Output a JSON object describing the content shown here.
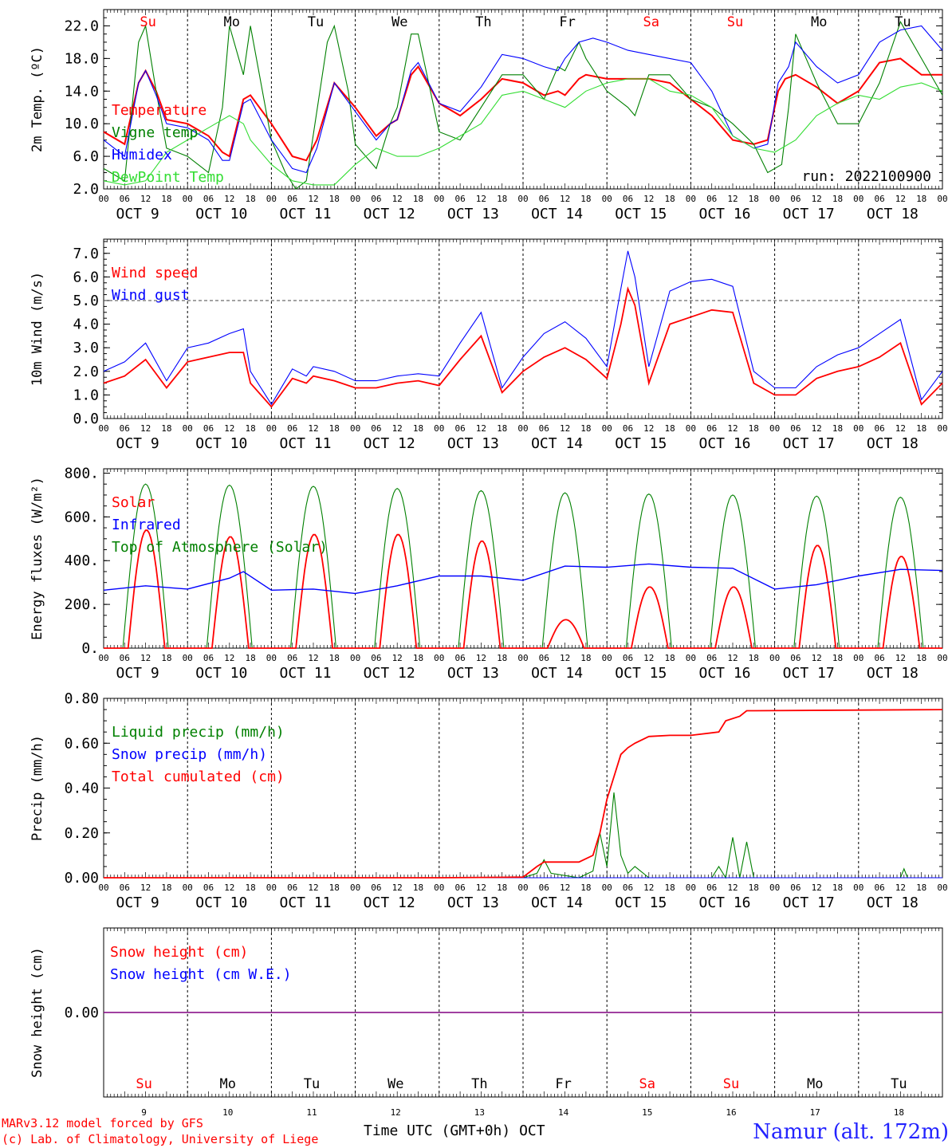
{
  "days": {
    "names": [
      "Su",
      "Mo",
      "Tu",
      "We",
      "Th",
      "Fr",
      "Sa",
      "Su",
      "Mo",
      "Tu"
    ],
    "weekend": [
      true,
      false,
      false,
      false,
      false,
      false,
      true,
      true,
      false,
      false
    ],
    "dates": [
      "OCT  9",
      "OCT 10",
      "OCT 11",
      "OCT 12",
      "OCT 13",
      "OCT 14",
      "OCT 15",
      "OCT 16",
      "OCT 17",
      "OCT 18"
    ],
    "numbers": [
      "9",
      "10",
      "11",
      "12",
      "13",
      "14",
      "15",
      "16",
      "17",
      "18"
    ],
    "hours": [
      "00",
      "06",
      "12",
      "18"
    ],
    "end_hour": "00"
  },
  "colors": {
    "red": "#ff0000",
    "green": "#008000",
    "blue": "#0000ff",
    "lightgreen": "#33dd33",
    "purple": "#800080",
    "gray": "#444444"
  },
  "footer": {
    "model": "MARv3.12 model forced by GFS",
    "credit": "(c) Lab. of Climatology, University of Liege",
    "xlabel": "Time UTC (GMT+0h) OCT",
    "station": "Namur (alt. 172m)"
  },
  "chart_data": [
    {
      "type": "line",
      "ylabel": "2m Temp. (ºC)",
      "ylim": [
        2,
        24
      ],
      "yticks": [
        "2.0",
        "6.0",
        "10.0",
        "14.0",
        "18.0",
        "22.0"
      ],
      "ytick_values": [
        2,
        6,
        10,
        14,
        18,
        22
      ],
      "run_label": "run: 2022100900",
      "x_unit": "hours since OCT 9 00 UTC",
      "series": [
        {
          "name": "Temperature",
          "color": "red",
          "x": [
            0,
            6,
            10,
            12,
            15,
            18,
            24,
            30,
            34,
            36,
            40,
            42,
            48,
            54,
            58,
            61,
            66,
            72,
            78,
            82,
            84,
            88,
            90,
            96,
            102,
            108,
            114,
            120,
            126,
            130,
            132,
            136,
            138,
            144,
            150,
            156,
            162,
            168,
            174,
            180,
            186,
            190,
            193,
            195,
            198,
            204,
            210,
            216,
            222,
            228,
            234,
            240
          ],
          "y": [
            9,
            7.5,
            15,
            16.5,
            14,
            10.5,
            10,
            8.5,
            6.5,
            6,
            13,
            13.5,
            10,
            6,
            5.5,
            8,
            15,
            12,
            8.5,
            10,
            10.5,
            16,
            17,
            12.5,
            11,
            13,
            15.5,
            15,
            13.5,
            14,
            13.5,
            15.5,
            16,
            15.5,
            15.5,
            15.5,
            15,
            13,
            11,
            8,
            7.5,
            8,
            14,
            15.5,
            16,
            14.5,
            12.5,
            14,
            17.5,
            18,
            16,
            16
          ]
        },
        {
          "name": "Vigne temp",
          "color": "green",
          "x": [
            0,
            6,
            10,
            12,
            15,
            18,
            24,
            30,
            34,
            36,
            40,
            42,
            48,
            52,
            55,
            58,
            64,
            66,
            70,
            72,
            78,
            82,
            84,
            88,
            90,
            96,
            102,
            108,
            114,
            120,
            126,
            130,
            132,
            136,
            138,
            144,
            150,
            152,
            156,
            162,
            168,
            174,
            180,
            186,
            190,
            194,
            196,
            198,
            204,
            210,
            216,
            222,
            228,
            234,
            240
          ],
          "y": [
            4.5,
            3,
            20,
            22,
            14,
            7,
            6,
            4,
            12,
            22,
            16,
            22,
            8,
            4,
            2,
            3,
            20,
            22,
            14,
            7.5,
            4.5,
            10,
            12,
            21,
            21,
            9,
            8,
            12,
            16,
            16,
            13,
            17,
            16.5,
            20,
            18,
            14,
            12,
            11,
            16,
            16,
            13,
            12,
            10,
            7.5,
            4,
            5,
            12,
            21,
            15,
            10,
            10,
            15,
            22.5,
            18,
            13.5
          ]
        },
        {
          "name": "Humidex",
          "color": "blue",
          "x": [
            0,
            6,
            10,
            12,
            15,
            18,
            24,
            30,
            34,
            36,
            40,
            42,
            48,
            54,
            58,
            61,
            66,
            72,
            78,
            82,
            84,
            88,
            90,
            96,
            102,
            108,
            114,
            120,
            126,
            130,
            132,
            136,
            140,
            144,
            150,
            156,
            162,
            168,
            174,
            180,
            186,
            190,
            193,
            196,
            198,
            204,
            210,
            216,
            222,
            228,
            234,
            240
          ],
          "y": [
            8,
            6,
            15,
            16.5,
            13.5,
            10,
            9.5,
            8,
            5.5,
            5.5,
            12.5,
            13,
            8,
            4.5,
            4,
            7,
            15,
            11.5,
            8,
            10,
            10.5,
            16.5,
            17.5,
            12.5,
            11.5,
            14.5,
            18.5,
            18,
            17,
            16.5,
            18,
            20,
            20.5,
            20,
            19,
            18.5,
            18,
            17.5,
            14,
            8.5,
            7,
            7.5,
            15,
            17,
            20,
            17,
            15,
            16,
            20,
            21.5,
            22,
            19
          ]
        },
        {
          "name": "DewPoint Temp",
          "color": "lightgreen",
          "x": [
            0,
            6,
            12,
            18,
            24,
            30,
            36,
            40,
            42,
            48,
            54,
            60,
            66,
            72,
            78,
            84,
            90,
            96,
            102,
            108,
            114,
            120,
            126,
            132,
            138,
            144,
            150,
            156,
            162,
            168,
            174,
            180,
            186,
            192,
            198,
            204,
            210,
            216,
            222,
            228,
            234,
            240
          ],
          "y": [
            3,
            2.5,
            3,
            6.5,
            8,
            9.5,
            11,
            10,
            8,
            5,
            3,
            2.5,
            2.5,
            5,
            7,
            6,
            6,
            7,
            8.5,
            10,
            13.5,
            14,
            13,
            12,
            14,
            15,
            15.5,
            15.5,
            14,
            13.5,
            12,
            8.5,
            7,
            6.5,
            8,
            11,
            12.5,
            13.5,
            13,
            14.5,
            15,
            14
          ]
        }
      ]
    },
    {
      "type": "line",
      "ylabel": "10m Wind (m/s)",
      "ylim": [
        0,
        7.6
      ],
      "yticks": [
        "0.0",
        "1.0",
        "2.0",
        "3.0",
        "4.0",
        "5.0",
        "6.0",
        "7.0"
      ],
      "ytick_values": [
        0,
        1,
        2,
        3,
        4,
        5,
        6,
        7
      ],
      "reference_line": 5,
      "series": [
        {
          "name": "Wind speed",
          "color": "red",
          "x": [
            0,
            6,
            12,
            18,
            24,
            30,
            36,
            40,
            42,
            48,
            54,
            58,
            60,
            66,
            72,
            78,
            84,
            90,
            96,
            102,
            108,
            114,
            120,
            126,
            132,
            138,
            144,
            148,
            150,
            152,
            156,
            162,
            168,
            174,
            180,
            186,
            192,
            198,
            204,
            210,
            216,
            222,
            228,
            234,
            240
          ],
          "y": [
            1.5,
            1.8,
            2.5,
            1.3,
            2.4,
            2.6,
            2.8,
            2.8,
            1.5,
            0.5,
            1.7,
            1.5,
            1.8,
            1.6,
            1.3,
            1.3,
            1.5,
            1.6,
            1.4,
            2.5,
            3.5,
            1.1,
            2,
            2.6,
            3,
            2.5,
            1.7,
            4,
            5.5,
            4.8,
            1.5,
            4,
            4.3,
            4.6,
            4.5,
            1.5,
            1,
            1,
            1.7,
            2,
            2.2,
            2.6,
            3.2,
            0.6,
            1.5
          ]
        },
        {
          "name": "Wind gust",
          "color": "blue",
          "x": [
            0,
            6,
            12,
            18,
            24,
            30,
            36,
            40,
            42,
            48,
            54,
            58,
            60,
            66,
            72,
            78,
            84,
            90,
            96,
            102,
            108,
            114,
            120,
            126,
            132,
            138,
            144,
            148,
            150,
            152,
            156,
            162,
            168,
            174,
            180,
            186,
            192,
            198,
            204,
            210,
            216,
            222,
            228,
            234,
            240
          ],
          "y": [
            2,
            2.4,
            3.2,
            1.6,
            3,
            3.2,
            3.6,
            3.8,
            2,
            0.6,
            2.1,
            1.8,
            2.2,
            2,
            1.6,
            1.6,
            1.8,
            1.9,
            1.8,
            3.2,
            4.5,
            1.3,
            2.6,
            3.6,
            4.1,
            3.4,
            2.2,
            5.5,
            7.1,
            6,
            2.2,
            5.4,
            5.8,
            5.9,
            5.6,
            2,
            1.3,
            1.3,
            2.2,
            2.7,
            3,
            3.6,
            4.2,
            0.8,
            2
          ]
        }
      ]
    },
    {
      "type": "line",
      "ylabel": "Energy fluxes (W/m²)",
      "ylim": [
        0,
        820
      ],
      "yticks": [
        "0.",
        "200.",
        "400.",
        "600.",
        "800."
      ],
      "ytick_values": [
        0,
        200,
        400,
        600,
        800
      ],
      "series": [
        {
          "name": "Solar",
          "color": "red",
          "peaks": [
            540,
            510,
            520,
            520,
            490,
            130,
            280,
            280,
            470,
            420
          ]
        },
        {
          "name": "Infrared",
          "color": "blue",
          "x": [
            0,
            12,
            24,
            36,
            40,
            48,
            60,
            72,
            84,
            96,
            108,
            120,
            132,
            144,
            156,
            168,
            180,
            192,
            204,
            216,
            228,
            240
          ],
          "y": [
            265,
            285,
            270,
            320,
            350,
            265,
            270,
            250,
            285,
            330,
            330,
            310,
            375,
            370,
            385,
            370,
            365,
            270,
            290,
            330,
            360,
            355
          ]
        },
        {
          "name": "Top of Atmosphere (Solar)",
          "color": "green",
          "peaks": [
            750,
            745,
            740,
            730,
            720,
            710,
            705,
            700,
            695,
            690
          ]
        }
      ]
    },
    {
      "type": "line",
      "ylabel": "Precip (mm/h)",
      "ylim": [
        0,
        0.8
      ],
      "yticks": [
        "0.00",
        "0.20",
        "0.40",
        "0.60",
        "0.80"
      ],
      "ytick_values": [
        0,
        0.2,
        0.4,
        0.6,
        0.8
      ],
      "series": [
        {
          "name": "Liquid precip (mm/h)",
          "color": "green",
          "x": [
            120,
            124,
            126,
            128,
            136,
            140,
            142,
            144,
            146,
            148,
            150,
            152,
            156,
            160,
            174,
            176,
            178,
            180,
            182,
            184,
            186,
            228,
            229,
            230
          ],
          "y": [
            0,
            0.02,
            0.08,
            0.02,
            0,
            0.03,
            0.2,
            0.05,
            0.38,
            0.1,
            0.02,
            0.05,
            0,
            0,
            0,
            0.05,
            0,
            0.18,
            0,
            0.16,
            0,
            0,
            0.04,
            0
          ]
        },
        {
          "name": "Snow precip (mm/h)",
          "color": "blue",
          "x": [
            0,
            240
          ],
          "y": [
            0,
            0
          ]
        },
        {
          "name": "Total cumulated (cm)",
          "color": "red",
          "x": [
            0,
            96,
            120,
            124,
            126,
            136,
            140,
            142,
            144,
            146,
            148,
            150,
            152,
            156,
            162,
            168,
            176,
            178,
            182,
            184,
            186,
            240
          ],
          "y": [
            0,
            0,
            0.003,
            0.05,
            0.07,
            0.07,
            0.1,
            0.2,
            0.35,
            0.45,
            0.55,
            0.58,
            0.6,
            0.63,
            0.635,
            0.635,
            0.65,
            0.7,
            0.72,
            0.745,
            0.745,
            0.75
          ]
        }
      ]
    },
    {
      "type": "line",
      "ylabel": "Snow height (cm)",
      "yticks": [
        "0.00"
      ],
      "ytick_values": [
        0
      ],
      "series": [
        {
          "name": "Snow height (cm)",
          "color": "red",
          "x": [
            0,
            240
          ],
          "y": [
            0,
            0
          ]
        },
        {
          "name": "Snow height (cm W.E.)",
          "color": "blue",
          "x": [
            0,
            240
          ],
          "y": [
            0,
            0
          ]
        }
      ]
    }
  ]
}
